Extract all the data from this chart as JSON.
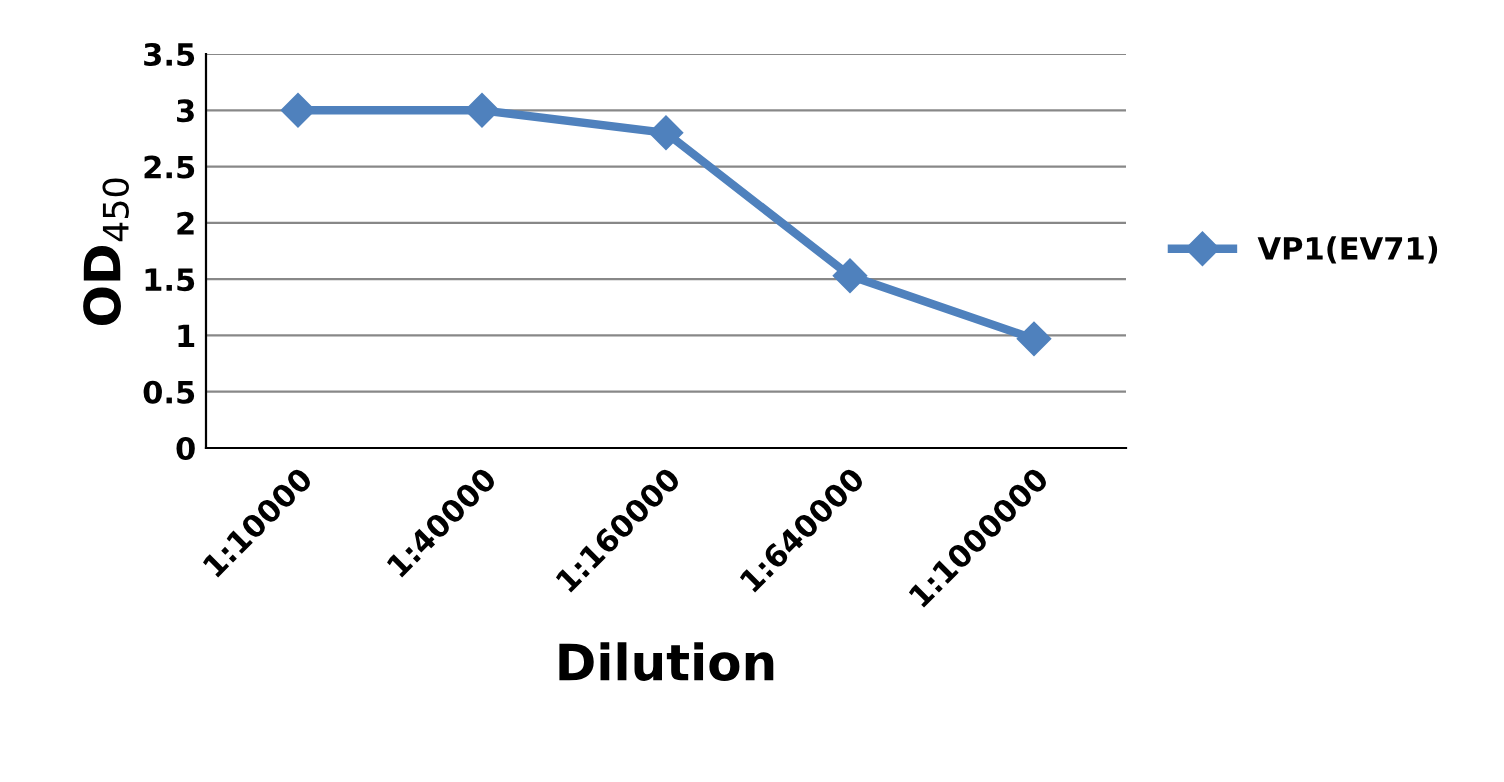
{
  "chart_data": {
    "type": "line",
    "xlabel": "Dilution",
    "ylabel": "OD$_{450}$",
    "categories": [
      "1:10000",
      "1:40000",
      "1:160000",
      "1:640000",
      "1:1000000"
    ],
    "series": [
      {
        "name": "VP1(EV71)",
        "color": "#4f81bd",
        "values": [
          3,
          3,
          2.8,
          1.53,
          0.97
        ]
      }
    ],
    "ylim": [
      0,
      3.5
    ],
    "yticks": [
      0,
      0.5,
      1,
      1.5,
      2,
      2.5,
      3,
      3.5
    ],
    "grid": "y",
    "legend": "right",
    "marker": "diamond",
    "line_style": "solid"
  }
}
